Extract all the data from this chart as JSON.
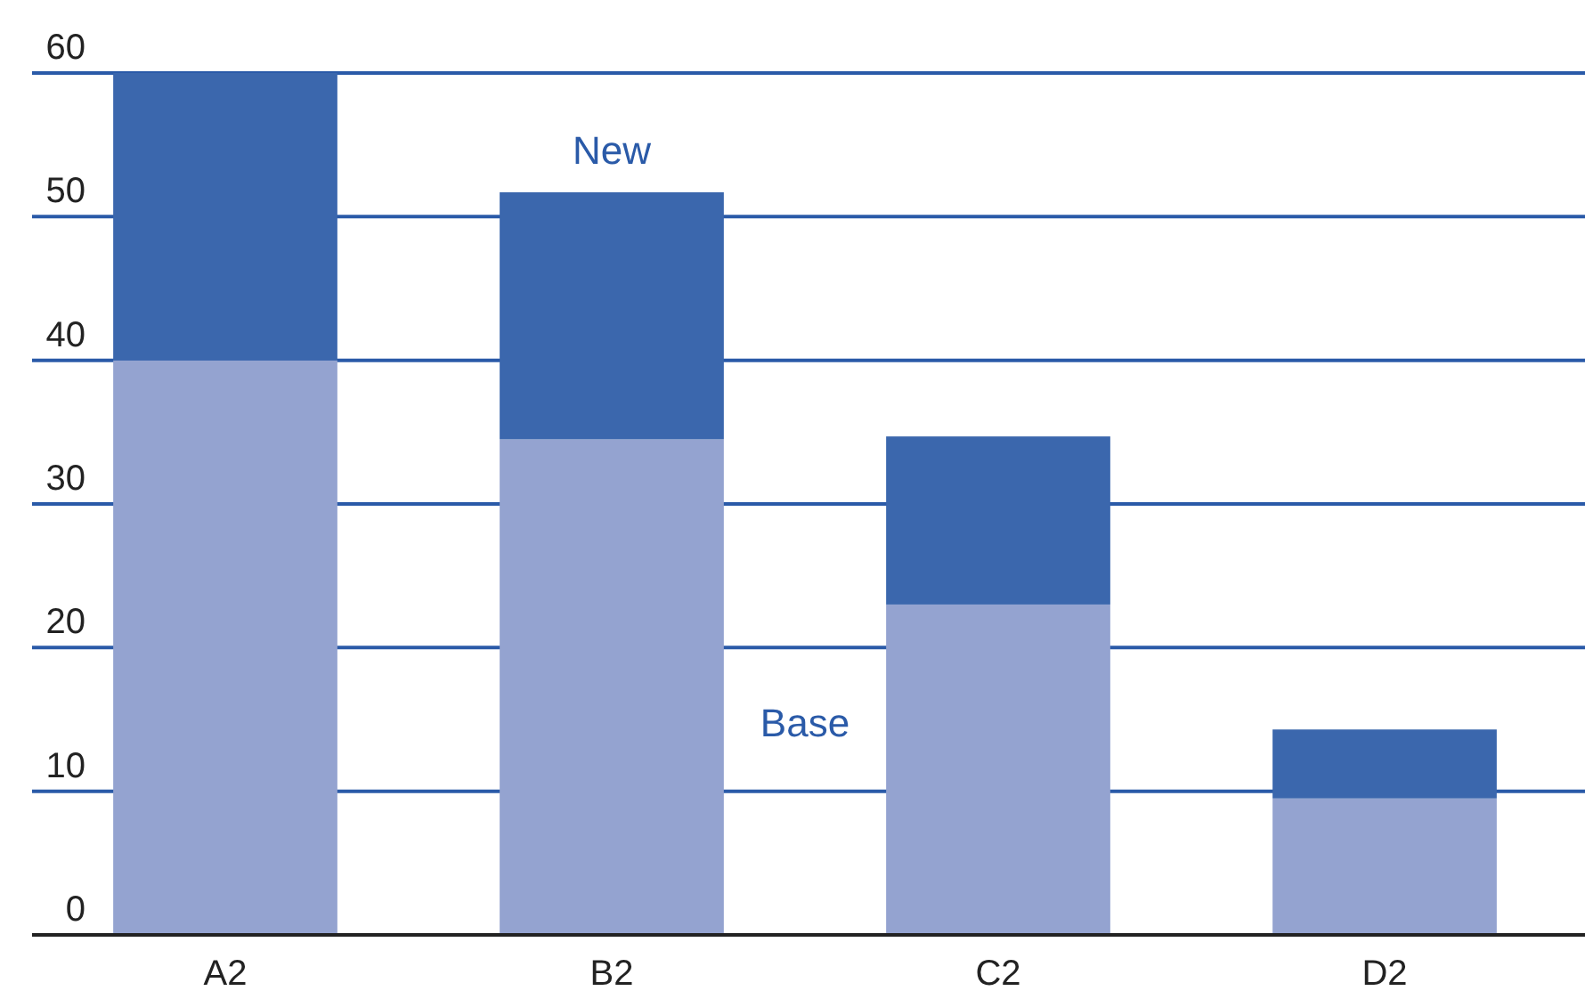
{
  "chart_data": {
    "type": "bar",
    "stacked": true,
    "categories": [
      "A2",
      "B2",
      "C2",
      "D2"
    ],
    "series": [
      {
        "name": "Base",
        "color": "#94a3d0",
        "values": [
          40,
          34.5,
          23,
          9.5
        ]
      },
      {
        "name": "New",
        "color": "#3b67ad",
        "values": [
          20,
          17.2,
          11.7,
          4.8
        ]
      }
    ],
    "ylim": [
      0,
      60
    ],
    "yticks": [
      0,
      10,
      20,
      30,
      40,
      50,
      60
    ],
    "grid": "y"
  }
}
